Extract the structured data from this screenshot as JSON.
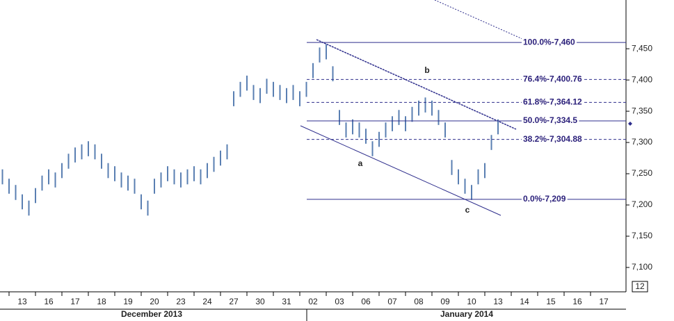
{
  "chart_data": {
    "type": "ohlc",
    "categories": [
      "13",
      "16",
      "17",
      "18",
      "19",
      "20",
      "23",
      "24",
      "27",
      "30",
      "31",
      "02",
      "03",
      "06",
      "07",
      "08",
      "09",
      "10",
      "13",
      "14",
      "15",
      "16",
      "17"
    ],
    "months": [
      "December 2013",
      "January 2014"
    ],
    "corner_label": "12",
    "ylim": [
      7061,
      7528
    ],
    "yticks": [
      {
        "value": 7100,
        "label": "7,100"
      },
      {
        "value": 7150,
        "label": "7,150"
      },
      {
        "value": 7200,
        "label": "7,200"
      },
      {
        "value": 7250,
        "label": "7,250"
      },
      {
        "value": 7300,
        "label": "7,300"
      },
      {
        "value": 7350,
        "label": "7,350"
      },
      {
        "value": 7400,
        "label": "7,400"
      },
      {
        "value": 7450,
        "label": "7,450"
      }
    ],
    "color": "#5a7fb2",
    "x": [
      -0.75,
      -0.5,
      -0.25,
      0,
      0.25,
      0.5,
      0.75,
      1,
      1.25,
      1.5,
      1.75,
      2,
      2.25,
      2.5,
      2.75,
      3,
      3.25,
      3.5,
      3.75,
      4,
      4.25,
      4.5,
      4.75,
      5,
      5.25,
      5.5,
      5.75,
      6,
      6.25,
      6.5,
      6.75,
      7,
      7.25,
      7.5,
      7.75,
      8,
      8.25,
      8.5,
      8.75,
      9,
      9.25,
      9.5,
      9.75,
      10,
      10.25,
      10.5,
      10.75,
      11,
      11.25,
      11.5,
      11.75,
      12,
      12.25,
      12.5,
      12.75,
      13,
      13.25,
      13.5,
      13.75,
      14,
      14.25,
      14.5,
      14.75,
      15,
      15.25,
      15.5,
      15.75,
      16,
      16.25,
      16.5,
      16.75,
      17,
      17.25,
      17.5,
      17.75,
      18
    ],
    "high": [
      7257,
      7242,
      7232,
      7217,
      7207,
      7227,
      7247,
      7257,
      7252,
      7267,
      7282,
      7292,
      7297,
      7302,
      7297,
      7282,
      7267,
      7262,
      7252,
      7247,
      7242,
      7217,
      7207,
      7242,
      7252,
      7262,
      7257,
      7252,
      7257,
      7262,
      7257,
      7267,
      7277,
      7287,
      7297,
      7382,
      7397,
      7407,
      7392,
      7387,
      7402,
      7397,
      7392,
      7387,
      7392,
      7382,
      7397,
      7427,
      7452,
      7457,
      7422,
      7352,
      7332,
      7337,
      7332,
      7322,
      7302,
      7317,
      7332,
      7342,
      7352,
      7342,
      7357,
      7367,
      7372,
      7367,
      7352,
      7332,
      7272,
      7257,
      7242,
      7232,
      7257,
      7267,
      7312,
      7337
    ],
    "low": [
      7233,
      7218,
      7208,
      7193,
      7183,
      7203,
      7223,
      7233,
      7228,
      7243,
      7258,
      7268,
      7273,
      7278,
      7273,
      7258,
      7243,
      7238,
      7228,
      7223,
      7218,
      7193,
      7183,
      7218,
      7228,
      7238,
      7233,
      7228,
      7233,
      7238,
      7233,
      7243,
      7253,
      7263,
      7273,
      7358,
      7373,
      7383,
      7368,
      7363,
      7378,
      7373,
      7368,
      7363,
      7368,
      7358,
      7373,
      7403,
      7428,
      7433,
      7398,
      7328,
      7308,
      7313,
      7308,
      7298,
      7278,
      7293,
      7308,
      7318,
      7328,
      7318,
      7333,
      7343,
      7348,
      7343,
      7328,
      7308,
      7248,
      7233,
      7218,
      7208,
      7233,
      7243,
      7288,
      7313
    ],
    "fib_levels": [
      {
        "value": 7460,
        "label": "100.0%-7,460",
        "dashed": false
      },
      {
        "value": 7400.76,
        "label": "76.4%-7,400.76",
        "dashed": true
      },
      {
        "value": 7364.12,
        "label": "61.8%-7,364.12",
        "dashed": true
      },
      {
        "value": 7334.5,
        "label": "50.0%-7,334.5",
        "dashed": false
      },
      {
        "value": 7304.88,
        "label": "38.2%-7,304.88",
        "dashed": true
      },
      {
        "value": 7209,
        "label": "0.0%-7,209",
        "dashed": false
      }
    ],
    "annotations": [
      "a",
      "b",
      "c"
    ]
  }
}
